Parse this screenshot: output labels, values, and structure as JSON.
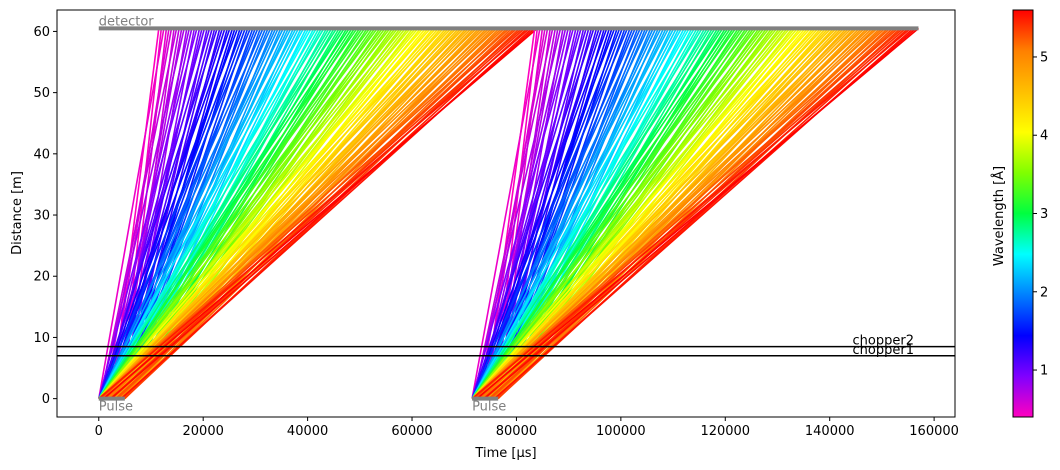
{
  "chart_data": {
    "type": "line",
    "xlabel": "Time [µs]",
    "ylabel": "Distance [m]",
    "xlim": [
      -8000,
      164000
    ],
    "ylim": [
      -3,
      63.5
    ],
    "xticks": [
      0,
      20000,
      40000,
      60000,
      80000,
      100000,
      120000,
      140000,
      160000
    ],
    "xtick_labels": [
      "0",
      "20000",
      "40000",
      "60000",
      "80000",
      "100000",
      "120000",
      "140000",
      "160000"
    ],
    "yticks": [
      0,
      10,
      20,
      30,
      40,
      50,
      60
    ],
    "ytick_labels": [
      "0",
      "10",
      "20",
      "30",
      "40",
      "50",
      "60"
    ],
    "grid": false,
    "colorbar": {
      "label": "Wavelength [Å]",
      "range": [
        0.4,
        5.6
      ],
      "ticks": [
        1,
        2,
        3,
        4,
        5
      ],
      "tick_labels": [
        "1",
        "2",
        "3",
        "4",
        "5"
      ],
      "colormap": "gist_rainbow_r",
      "stops": [
        "#ff00bf",
        "#8000ff",
        "#0000ff",
        "#0080ff",
        "#00ffff",
        "#00ff40",
        "#80ff00",
        "#ffff00",
        "#ffbf00",
        "#ff8000",
        "#ff0000"
      ]
    },
    "detector": {
      "label": "detector",
      "distance": 60.5,
      "t_start": 0,
      "t_end": 157000
    },
    "choppers": [
      {
        "label": "chopper2",
        "distance": 8.5
      },
      {
        "label": "chopper1",
        "distance": 7.0
      }
    ],
    "pulses": [
      {
        "label": "Pulse",
        "t_start": 0,
        "t_end": 5000,
        "arrival_min": 11500,
        "arrival_max": 84000
      },
      {
        "label": "Pulse",
        "t_start": 71500,
        "t_end": 76500,
        "arrival_min": 83500,
        "arrival_max": 157000
      }
    ],
    "colors": {
      "detector": "#808080",
      "pulse": "#808080",
      "chopper": "#000000"
    }
  }
}
